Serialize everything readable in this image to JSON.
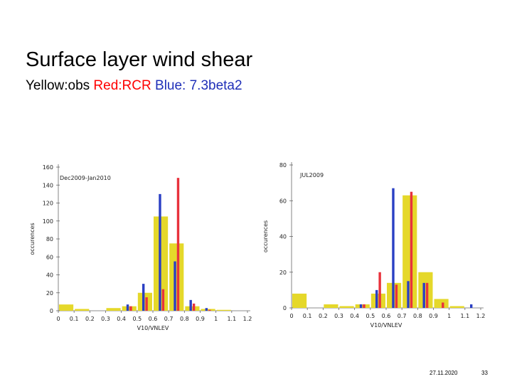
{
  "slide": {
    "title": "Surface layer wind shear",
    "legend": {
      "obs": "Yellow:obs",
      "rcr": "Red:RCR",
      "blue": "Blue: 7.3beta2"
    },
    "footer_date": "27.11.2020",
    "footer_page": "33"
  },
  "colors": {
    "obs": "#e5d82a",
    "rcr": "#e8323c",
    "blue": "#2a3fc4",
    "axis": "#666666"
  },
  "chart_data": [
    {
      "type": "bar",
      "title": "Dec2009-Jan2010",
      "xlabel": "V10/VNLEV",
      "ylabel": "occurences",
      "xlim": [
        0,
        1.2
      ],
      "ylim": [
        0,
        160
      ],
      "xticks": [
        0,
        0.1,
        0.2,
        0.3,
        0.4,
        0.5,
        0.6,
        0.7,
        0.8,
        0.9,
        1,
        1.1,
        1.2
      ],
      "xtick_labels": [
        "0",
        "0.1",
        "0.2",
        "0.3",
        "0.4",
        "0.5",
        "0.6",
        "0.7",
        "0.8",
        "0.9",
        "1",
        "1.1",
        "1.2"
      ],
      "yticks": [
        0,
        20,
        40,
        60,
        80,
        100,
        120,
        140,
        160
      ],
      "series": [
        {
          "key": "obs",
          "kind": "wide",
          "bins": [
            [
              0,
              0.1,
              7
            ],
            [
              0.1,
              0.2,
              2
            ],
            [
              0.3,
              0.4,
              3
            ],
            [
              0.4,
              0.5,
              5
            ],
            [
              0.5,
              0.6,
              20
            ],
            [
              0.6,
              0.7,
              105
            ],
            [
              0.7,
              0.8,
              75
            ],
            [
              0.8,
              0.9,
              5
            ],
            [
              0.9,
              1.0,
              2
            ],
            [
              1.0,
              1.1,
              1
            ]
          ]
        },
        {
          "key": "blue",
          "kind": "thin",
          "points": [
            [
              0.44,
              7
            ],
            [
              0.54,
              30
            ],
            [
              0.645,
              130
            ],
            [
              0.74,
              55
            ],
            [
              0.84,
              12
            ],
            [
              0.94,
              3
            ]
          ]
        },
        {
          "key": "rcr",
          "kind": "thin",
          "points": [
            [
              0.46,
              5
            ],
            [
              0.56,
              15
            ],
            [
              0.665,
              24
            ],
            [
              0.76,
              148
            ],
            [
              0.86,
              8
            ],
            [
              0.96,
              1
            ]
          ]
        }
      ]
    },
    {
      "type": "bar",
      "title": "JUL2009",
      "xlabel": "V10/VNLEV",
      "ylabel": "occurences",
      "xlim": [
        0,
        1.2
      ],
      "ylim": [
        0,
        80
      ],
      "xticks": [
        0,
        0.1,
        0.2,
        0.3,
        0.4,
        0.5,
        0.6,
        0.7,
        0.8,
        0.9,
        1,
        1.1,
        1.2
      ],
      "xtick_labels": [
        "0",
        "0.1",
        "0.2",
        "0.3",
        "0.4",
        "0.5",
        "0.6",
        "0.7",
        "0.8",
        "0.9",
        "1",
        "1.1",
        "1.2"
      ],
      "yticks": [
        0,
        20,
        40,
        60,
        80
      ],
      "series": [
        {
          "key": "obs",
          "kind": "wide",
          "bins": [
            [
              0,
              0.1,
              8
            ],
            [
              0.2,
              0.3,
              2
            ],
            [
              0.3,
              0.4,
              1
            ],
            [
              0.4,
              0.5,
              2
            ],
            [
              0.5,
              0.6,
              8
            ],
            [
              0.6,
              0.7,
              14
            ],
            [
              0.7,
              0.8,
              63
            ],
            [
              0.8,
              0.9,
              20
            ],
            [
              0.9,
              1.0,
              5
            ],
            [
              1.0,
              1.1,
              1
            ]
          ]
        },
        {
          "key": "blue",
          "kind": "thin",
          "points": [
            [
              0.44,
              2
            ],
            [
              0.54,
              10
            ],
            [
              0.645,
              67
            ],
            [
              0.74,
              15
            ],
            [
              0.84,
              14
            ],
            [
              1.14,
              2
            ]
          ]
        },
        {
          "key": "rcr",
          "kind": "thin",
          "points": [
            [
              0.46,
              2
            ],
            [
              0.56,
              20
            ],
            [
              0.665,
              13
            ],
            [
              0.76,
              65
            ],
            [
              0.86,
              14
            ],
            [
              0.96,
              3
            ]
          ]
        }
      ]
    }
  ]
}
